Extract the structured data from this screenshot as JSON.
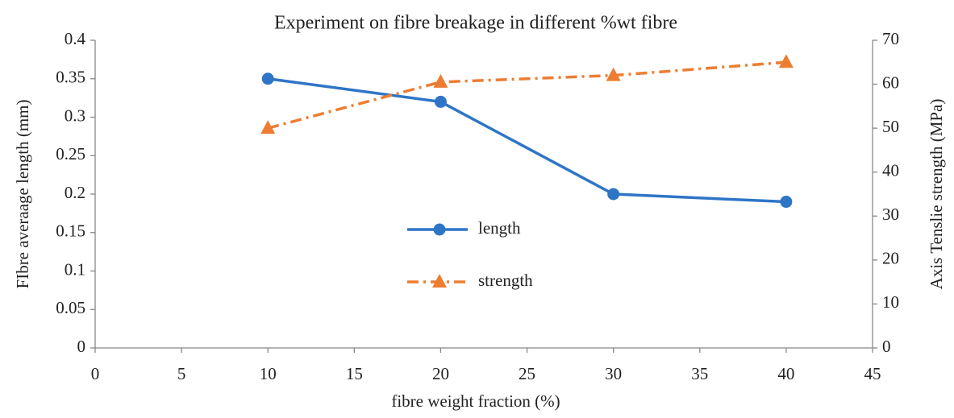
{
  "chart_data": {
    "type": "line",
    "title": "Experiment on fibre breakage in different %wt fibre",
    "x_label": "fibre weight fraction (%)",
    "y_label": "FIbre averaage length (mm)",
    "y2_label": "Axis Tenslie strength (MPa)",
    "x": [
      10,
      20,
      30,
      40
    ],
    "series": [
      {
        "name": "length",
        "color": "#2e75c6",
        "marker": "circle",
        "dash": "solid",
        "values": [
          0.35,
          0.32,
          0.2,
          0.19
        ]
      },
      {
        "name": "strength",
        "color": "#ed7d31",
        "marker": "triangle",
        "dash": "dashdot",
        "axis": "y2",
        "values": [
          50,
          60.5,
          62,
          65
        ]
      }
    ],
    "xlim": [
      0,
      45
    ],
    "xticks": [
      0,
      5,
      10,
      15,
      20,
      25,
      30,
      35,
      40,
      45
    ],
    "ylim": [
      0,
      0.4
    ],
    "yticks": [
      0,
      0.05,
      0.1,
      0.15,
      0.2,
      0.25,
      0.3,
      0.35,
      0.4
    ],
    "y2lim": [
      0,
      70
    ],
    "y2ticks": [
      0,
      10,
      20,
      30,
      40,
      50,
      60,
      70
    ],
    "grid": false,
    "legend": "center"
  }
}
